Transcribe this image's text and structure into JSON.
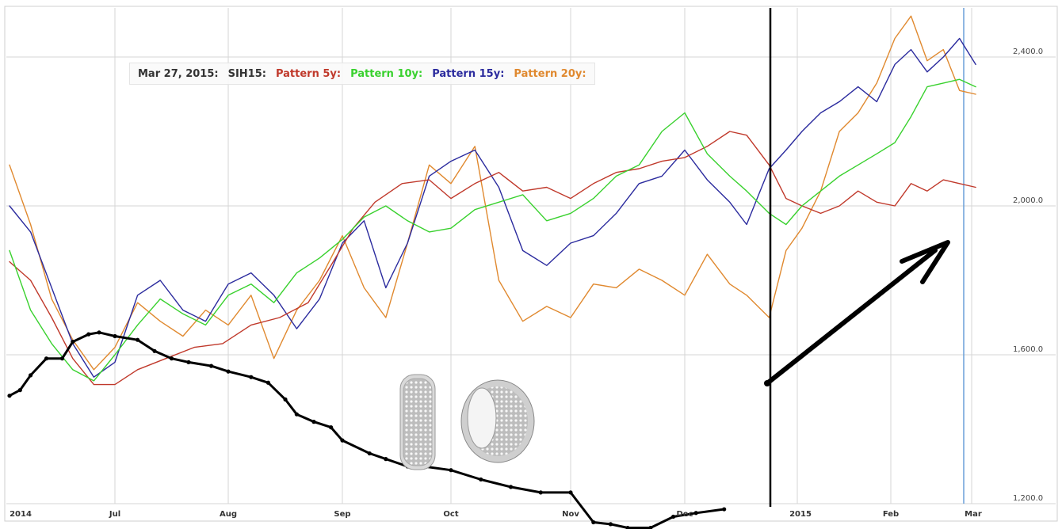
{
  "chart_data": {
    "type": "line",
    "x_ticks": [
      "2014",
      "Jul",
      "Aug",
      "Sep",
      "Oct",
      "Nov",
      "Dec",
      "2015",
      "Feb",
      "Mar"
    ],
    "y_ticks": [
      "1,200.0",
      "1,600.0",
      "2,000.0",
      "2,400.0"
    ],
    "ylim": [
      1200,
      2530
    ],
    "grid": true,
    "legend_position": "top-left",
    "legend": {
      "date": "Mar 27, 2015:",
      "symbol": "SIH15:",
      "items": [
        "Pattern 5y:",
        "Pattern 10y:",
        "Pattern 15y:",
        "Pattern 20y:"
      ]
    },
    "colors": {
      "price": "#000000",
      "pattern_5y": "#c0392b",
      "pattern_10y": "#39d12e",
      "pattern_15y": "#2b2b9e",
      "pattern_20y": "#e0892f",
      "grid": "#d5d5d5",
      "highlight_line": "#6a9fd8"
    },
    "series": [
      {
        "name": "SIH15",
        "color": "#000000",
        "points": [
          [
            0,
            1490
          ],
          [
            0.1,
            1505
          ],
          [
            0.2,
            1545
          ],
          [
            0.35,
            1590
          ],
          [
            0.5,
            1590
          ],
          [
            0.6,
            1635
          ],
          [
            0.75,
            1655
          ],
          [
            0.85,
            1660
          ],
          [
            1.0,
            1650
          ],
          [
            1.2,
            1640
          ],
          [
            1.35,
            1610
          ],
          [
            1.5,
            1590
          ],
          [
            1.65,
            1580
          ],
          [
            1.85,
            1570
          ],
          [
            2.0,
            1555
          ],
          [
            2.2,
            1540
          ],
          [
            2.35,
            1525
          ],
          [
            2.5,
            1480
          ],
          [
            2.6,
            1440
          ],
          [
            2.75,
            1420
          ],
          [
            2.9,
            1405
          ],
          [
            3.0,
            1370
          ],
          [
            3.25,
            1335
          ],
          [
            3.4,
            1320
          ],
          [
            3.6,
            1300
          ],
          [
            3.75,
            1300
          ],
          [
            4.0,
            1290
          ],
          [
            4.25,
            1265
          ],
          [
            4.5,
            1245
          ],
          [
            4.75,
            1230
          ],
          [
            5.0,
            1230
          ],
          [
            5.2,
            1150
          ],
          [
            5.35,
            1145
          ],
          [
            5.5,
            1135
          ],
          [
            5.7,
            1135
          ],
          [
            5.9,
            1165
          ],
          [
            6.1,
            1175
          ],
          [
            6.35,
            1185
          ]
        ]
      },
      {
        "name": "Pattern 5y:",
        "color": "#c0392b",
        "points": [
          [
            0,
            1850
          ],
          [
            0.2,
            1800
          ],
          [
            0.4,
            1700
          ],
          [
            0.6,
            1590
          ],
          [
            0.8,
            1520
          ],
          [
            1.0,
            1520
          ],
          [
            1.2,
            1560
          ],
          [
            1.45,
            1590
          ],
          [
            1.7,
            1620
          ],
          [
            1.95,
            1630
          ],
          [
            2.2,
            1680
          ],
          [
            2.45,
            1700
          ],
          [
            2.7,
            1740
          ],
          [
            2.9,
            1840
          ],
          [
            3.1,
            1940
          ],
          [
            3.3,
            2010
          ],
          [
            3.55,
            2060
          ],
          [
            3.8,
            2070
          ],
          [
            4.0,
            2020
          ],
          [
            4.2,
            2060
          ],
          [
            4.4,
            2090
          ],
          [
            4.6,
            2040
          ],
          [
            4.8,
            2050
          ],
          [
            5.0,
            2020
          ],
          [
            5.2,
            2060
          ],
          [
            5.4,
            2090
          ],
          [
            5.6,
            2100
          ],
          [
            5.8,
            2120
          ],
          [
            6.0,
            2130
          ],
          [
            6.2,
            2160
          ],
          [
            6.4,
            2200
          ],
          [
            6.55,
            2190
          ],
          [
            6.75,
            2110
          ],
          [
            6.9,
            2020
          ],
          [
            7.05,
            2000
          ],
          [
            7.25,
            1980
          ],
          [
            7.45,
            2000
          ],
          [
            7.65,
            2040
          ],
          [
            7.85,
            2010
          ],
          [
            8.05,
            2000
          ],
          [
            8.25,
            2060
          ],
          [
            8.45,
            2040
          ],
          [
            8.65,
            2070
          ],
          [
            8.85,
            2060
          ],
          [
            9.05,
            2050
          ]
        ]
      },
      {
        "name": "Pattern 10y:",
        "color": "#39d12e",
        "points": [
          [
            0,
            1880
          ],
          [
            0.2,
            1720
          ],
          [
            0.4,
            1630
          ],
          [
            0.6,
            1560
          ],
          [
            0.8,
            1530
          ],
          [
            1.0,
            1600
          ],
          [
            1.2,
            1680
          ],
          [
            1.4,
            1750
          ],
          [
            1.6,
            1710
          ],
          [
            1.8,
            1680
          ],
          [
            2.0,
            1760
          ],
          [
            2.2,
            1790
          ],
          [
            2.4,
            1740
          ],
          [
            2.6,
            1820
          ],
          [
            2.8,
            1860
          ],
          [
            3.0,
            1910
          ],
          [
            3.2,
            1970
          ],
          [
            3.4,
            2000
          ],
          [
            3.6,
            1960
          ],
          [
            3.8,
            1930
          ],
          [
            4.0,
            1940
          ],
          [
            4.2,
            1990
          ],
          [
            4.4,
            2010
          ],
          [
            4.6,
            2030
          ],
          [
            4.8,
            1960
          ],
          [
            5.0,
            1980
          ],
          [
            5.2,
            2020
          ],
          [
            5.4,
            2080
          ],
          [
            5.6,
            2110
          ],
          [
            5.8,
            2200
          ],
          [
            6.0,
            2250
          ],
          [
            6.2,
            2140
          ],
          [
            6.4,
            2080
          ],
          [
            6.55,
            2040
          ],
          [
            6.75,
            1980
          ],
          [
            6.9,
            1950
          ],
          [
            7.05,
            2000
          ],
          [
            7.25,
            2040
          ],
          [
            7.45,
            2080
          ],
          [
            7.65,
            2110
          ],
          [
            7.85,
            2140
          ],
          [
            8.05,
            2170
          ],
          [
            8.25,
            2240
          ],
          [
            8.45,
            2320
          ],
          [
            8.65,
            2330
          ],
          [
            8.85,
            2340
          ],
          [
            9.05,
            2320
          ]
        ]
      },
      {
        "name": "Pattern 15y:",
        "color": "#2b2b9e",
        "points": [
          [
            0,
            2000
          ],
          [
            0.2,
            1930
          ],
          [
            0.4,
            1780
          ],
          [
            0.6,
            1630
          ],
          [
            0.8,
            1540
          ],
          [
            1.0,
            1580
          ],
          [
            1.2,
            1760
          ],
          [
            1.4,
            1800
          ],
          [
            1.6,
            1720
          ],
          [
            1.8,
            1690
          ],
          [
            2.0,
            1790
          ],
          [
            2.2,
            1820
          ],
          [
            2.4,
            1760
          ],
          [
            2.6,
            1670
          ],
          [
            2.8,
            1750
          ],
          [
            3.0,
            1900
          ],
          [
            3.2,
            1960
          ],
          [
            3.4,
            1780
          ],
          [
            3.6,
            1900
          ],
          [
            3.8,
            2080
          ],
          [
            4.0,
            2120
          ],
          [
            4.2,
            2150
          ],
          [
            4.4,
            2050
          ],
          [
            4.6,
            1880
          ],
          [
            4.8,
            1840
          ],
          [
            5.0,
            1900
          ],
          [
            5.2,
            1920
          ],
          [
            5.4,
            1980
          ],
          [
            5.6,
            2060
          ],
          [
            5.8,
            2080
          ],
          [
            6.0,
            2150
          ],
          [
            6.2,
            2070
          ],
          [
            6.4,
            2010
          ],
          [
            6.55,
            1950
          ],
          [
            6.75,
            2100
          ],
          [
            6.9,
            2150
          ],
          [
            7.05,
            2200
          ],
          [
            7.25,
            2250
          ],
          [
            7.45,
            2280
          ],
          [
            7.65,
            2320
          ],
          [
            7.85,
            2280
          ],
          [
            8.05,
            2380
          ],
          [
            8.25,
            2420
          ],
          [
            8.45,
            2360
          ],
          [
            8.65,
            2400
          ],
          [
            8.85,
            2450
          ],
          [
            9.05,
            2380
          ]
        ]
      },
      {
        "name": "Pattern 20y:",
        "color": "#e0892f",
        "points": [
          [
            0,
            2110
          ],
          [
            0.2,
            1950
          ],
          [
            0.4,
            1750
          ],
          [
            0.6,
            1640
          ],
          [
            0.8,
            1560
          ],
          [
            1.0,
            1620
          ],
          [
            1.2,
            1740
          ],
          [
            1.4,
            1690
          ],
          [
            1.6,
            1650
          ],
          [
            1.8,
            1720
          ],
          [
            2.0,
            1680
          ],
          [
            2.2,
            1760
          ],
          [
            2.4,
            1590
          ],
          [
            2.6,
            1720
          ],
          [
            2.8,
            1800
          ],
          [
            3.0,
            1920
          ],
          [
            3.2,
            1780
          ],
          [
            3.4,
            1700
          ],
          [
            3.6,
            1900
          ],
          [
            3.8,
            2110
          ],
          [
            4.0,
            2060
          ],
          [
            4.2,
            2160
          ],
          [
            4.4,
            1800
          ],
          [
            4.6,
            1690
          ],
          [
            4.8,
            1730
          ],
          [
            5.0,
            1700
          ],
          [
            5.2,
            1790
          ],
          [
            5.4,
            1780
          ],
          [
            5.6,
            1830
          ],
          [
            5.8,
            1800
          ],
          [
            6.0,
            1760
          ],
          [
            6.2,
            1870
          ],
          [
            6.4,
            1790
          ],
          [
            6.55,
            1760
          ],
          [
            6.75,
            1700
          ],
          [
            6.9,
            1880
          ],
          [
            7.05,
            1940
          ],
          [
            7.25,
            2040
          ],
          [
            7.45,
            2200
          ],
          [
            7.65,
            2250
          ],
          [
            7.85,
            2330
          ],
          [
            8.05,
            2450
          ],
          [
            8.25,
            2510
          ],
          [
            8.45,
            2390
          ],
          [
            8.65,
            2420
          ],
          [
            8.85,
            2310
          ],
          [
            9.05,
            2300
          ]
        ]
      }
    ]
  }
}
